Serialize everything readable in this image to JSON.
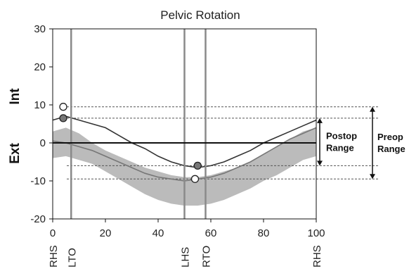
{
  "chart_data": {
    "type": "line",
    "title": "Pelvic Rotation",
    "xlabel": "",
    "y_side_labels": {
      "top": "Int",
      "bottom": "Ext"
    },
    "xlim": [
      0,
      100
    ],
    "ylim": [
      -20,
      30
    ],
    "x_ticks": [
      0,
      20,
      40,
      60,
      80,
      100
    ],
    "y_ticks": [
      30,
      20,
      10,
      0,
      -10,
      -20
    ],
    "gait_events": [
      {
        "label": "RHS",
        "x": 0
      },
      {
        "label": "LTO",
        "x": 7
      },
      {
        "label": "LHS",
        "x": 50
      },
      {
        "label": "RTO",
        "x": 58
      },
      {
        "label": "RHS",
        "x": 100
      }
    ],
    "normal_band": {
      "x": [
        0,
        5,
        10,
        15,
        20,
        25,
        30,
        35,
        40,
        45,
        50,
        55,
        60,
        65,
        70,
        75,
        80,
        85,
        90,
        95,
        100
      ],
      "upper": [
        3,
        4,
        2.5,
        0,
        -2,
        -3.5,
        -5,
        -6.5,
        -7.5,
        -8.5,
        -9,
        -9,
        -8.5,
        -7.5,
        -6.5,
        -5,
        -3,
        -1,
        1,
        3,
        4
      ],
      "lower": [
        -4,
        -3.5,
        -4.5,
        -5.5,
        -7.5,
        -9.5,
        -11.5,
        -13.5,
        -15,
        -16,
        -16.5,
        -16.5,
        -16,
        -15,
        -13.5,
        -12,
        -10,
        -8.5,
        -6.5,
        -4.5,
        -3.5
      ]
    },
    "series": [
      {
        "values_x": [
          0,
          5,
          10,
          15,
          20,
          25,
          30,
          35,
          40,
          45,
          50,
          55,
          60,
          65,
          70,
          75,
          80,
          85,
          90,
          95,
          100
        ],
        "values_y": [
          0.5,
          0,
          -1,
          -2,
          -3.5,
          -5,
          -6.5,
          -8,
          -9,
          -9.5,
          -10,
          -9.5,
          -9,
          -8,
          -6.5,
          -5,
          -3,
          -1,
          1,
          2.5,
          4
        ],
        "color": "#777777"
      },
      {
        "values_x": [
          0,
          5,
          10,
          15,
          20,
          25,
          30,
          35,
          40,
          45,
          50,
          55,
          60,
          65,
          70,
          75,
          80,
          85,
          90,
          95,
          100
        ],
        "values_y": [
          6,
          7,
          6,
          5,
          4,
          2,
          0,
          -1.5,
          -3.5,
          -5,
          -6,
          -6.5,
          -6,
          -5,
          -3.5,
          -2,
          0,
          1.5,
          3,
          4.5,
          6
        ],
        "color": "#333333"
      }
    ],
    "markers": [
      {
        "x": 4,
        "y": 9.5,
        "fill": "#ffffff"
      },
      {
        "x": 4,
        "y": 6.5,
        "fill": "#777777"
      },
      {
        "x": 54,
        "y": -9.5,
        "fill": "#ffffff"
      },
      {
        "x": 55,
        "y": -6,
        "fill": "#777777"
      }
    ],
    "ranges": [
      {
        "label_lines": [
          "Postop",
          "Range"
        ],
        "top": 6.5,
        "bottom": -6
      },
      {
        "label_lines": [
          "Preop",
          "Range"
        ],
        "top": 9.5,
        "bottom": -9.5
      }
    ],
    "grid": false
  },
  "colors": {
    "band": "#aaaaaa",
    "axis": "#111111",
    "event_line": "#8a8a8a"
  }
}
